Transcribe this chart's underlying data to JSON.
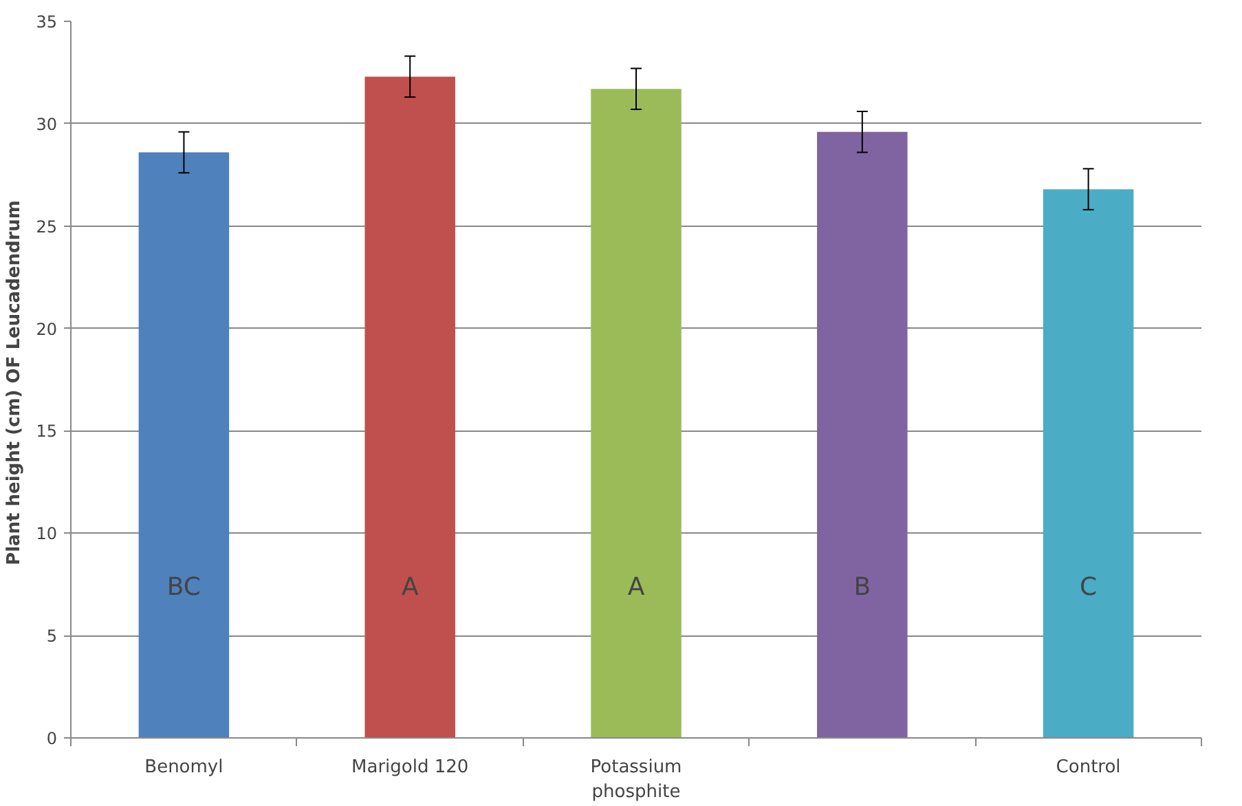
{
  "chart_data": {
    "type": "bar",
    "ylabel": "Plant height (cm)  OF Leucadendrum",
    "categories": [
      "Benomyl",
      "Marigold 120",
      "Potassium phosphite",
      null,
      "Control"
    ],
    "values": [
      28.6,
      32.3,
      31.7,
      29.6,
      26.8
    ],
    "colors": [
      "#4f81bd",
      "#c0504d",
      "#9bbb59",
      "#8064a2",
      "#4bacc6"
    ],
    "errors": [
      1.0,
      1.0,
      1.0,
      1.0,
      1.0
    ],
    "ylim": [
      0,
      35
    ],
    "yticks": [
      0,
      5,
      10,
      15,
      20,
      25,
      30,
      35
    ],
    "grid": "y",
    "annotations": [
      "BC",
      "A",
      "A",
      "B",
      "C"
    ]
  }
}
